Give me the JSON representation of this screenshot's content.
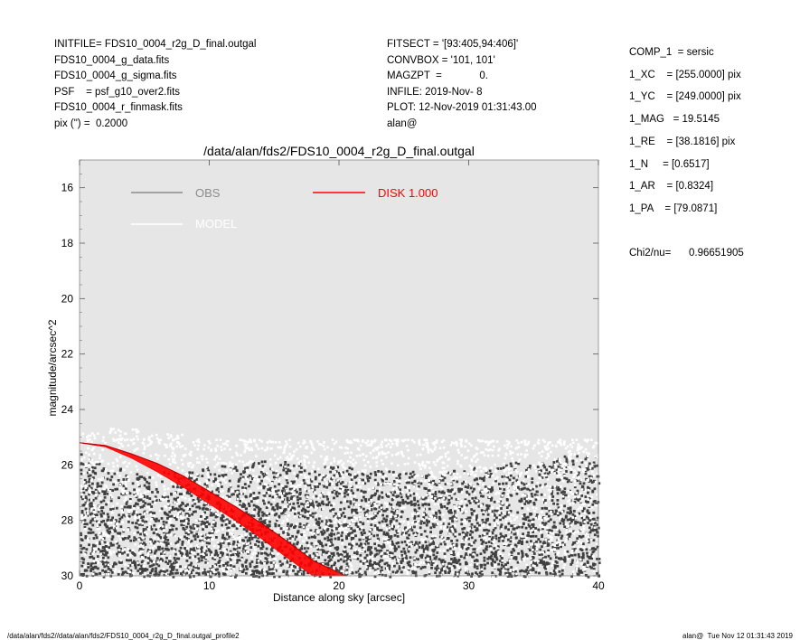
{
  "header_left": [
    "INITFILE= FDS10_0004_r2g_D_final.outgal",
    "FDS10_0004_g_data.fits",
    "FDS10_0004_g_sigma.fits",
    "PSF    = psf_g10_over2.fits",
    "FDS10_0004_r_finmask.fits",
    "pix (\") =  0.2000"
  ],
  "header_mid": [
    "FITSECT = '[93:405,94:406]'",
    "CONVBOX = '101, 101'",
    "MAGZPT  =             0.",
    "INFILE: 2019-Nov- 8",
    "PLOT: 12-Nov-2019 01:31:43.00",
    "alan@"
  ],
  "params": [
    "COMP_1  = sersic",
    "1_XC    = [255.0000] pix",
    "1_YC    = [249.0000] pix",
    "1_MAG   = 19.5145",
    "1_RE    = [38.1816] pix",
    "1_N     = [0.6517]",
    "1_AR    = [0.8324]",
    "1_PA    = [79.0871]"
  ],
  "chi2": {
    "label": "Chi2/nu=",
    "value": "0.96651905"
  },
  "footer": {
    "left": "/data/alan/fds2//data/alan/fds2/FDS10_0004_r2g_D_final.outgal_profile2",
    "right": "alan@  Tue Nov 12 01:31:43 2019"
  },
  "chart_data": {
    "type": "scatter",
    "title": "/data/alan/fds2/FDS10_0004_r2g_D_final.outgal",
    "xlabel": "Distance along sky [arcsec]",
    "ylabel": "magnitude/arcsec^2",
    "xlim": [
      0,
      40
    ],
    "ylim": [
      30,
      15
    ],
    "y_inverted": true,
    "grid": false,
    "x_ticks": [
      0,
      10,
      20,
      30,
      40
    ],
    "y_ticks": [
      16,
      18,
      20,
      22,
      24,
      26,
      28,
      30
    ],
    "legend": [
      {
        "name": "OBS",
        "color": "#8c8c8c"
      },
      {
        "name": "MODEL",
        "color": "#ffffff"
      },
      {
        "name": "DISK  1.000",
        "color": "#ff0000"
      }
    ],
    "background_color": "#e6e6e6",
    "series": [
      {
        "name": "OBS",
        "kind": "scatter",
        "color": "#404040",
        "x_range": [
          0,
          40
        ],
        "y_range": [
          25.5,
          30
        ],
        "description_level": [
          25.3,
          26.8,
          27.2,
          27.1,
          27.0
        ]
      },
      {
        "name": "MODEL",
        "kind": "scatter",
        "color": "#ffffff",
        "x_range": [
          0,
          40
        ],
        "y_range": [
          24.6,
          30
        ]
      },
      {
        "name": "DISK  1.000",
        "kind": "band",
        "color": "#ff0000",
        "x": [
          0,
          2,
          4,
          6,
          8,
          10,
          12,
          14,
          16,
          18,
          20.5
        ],
        "y_upper": [
          25.2,
          25.3,
          25.6,
          25.95,
          26.4,
          26.95,
          27.5,
          28.1,
          28.75,
          29.45,
          30.0
        ],
        "y_lower": [
          25.2,
          25.35,
          25.75,
          26.25,
          26.8,
          27.4,
          28.0,
          28.65,
          29.35,
          30.0,
          30.0
        ]
      }
    ]
  }
}
